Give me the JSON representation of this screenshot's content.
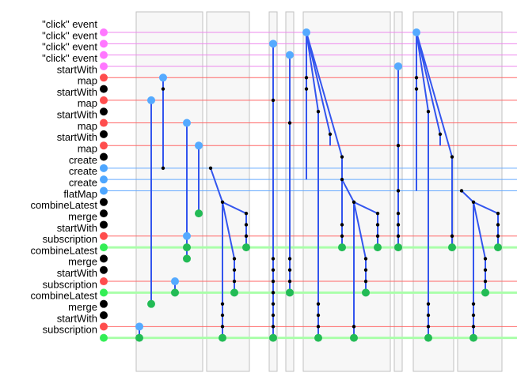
{
  "diagram": {
    "rows": [
      {
        "label": "\"click\" event",
        "kind": "event"
      },
      {
        "label": "\"click\" event",
        "kind": "event"
      },
      {
        "label": "\"click\" event",
        "kind": "event"
      },
      {
        "label": "\"click\" event",
        "kind": "event"
      },
      {
        "label": "startWith",
        "kind": "start"
      },
      {
        "label": "map",
        "kind": "op"
      },
      {
        "label": "startWith",
        "kind": "start"
      },
      {
        "label": "map",
        "kind": "op"
      },
      {
        "label": "startWith",
        "kind": "start"
      },
      {
        "label": "map",
        "kind": "op"
      },
      {
        "label": "startWith",
        "kind": "start"
      },
      {
        "label": "map",
        "kind": "op"
      },
      {
        "label": "create",
        "kind": "create"
      },
      {
        "label": "create",
        "kind": "create"
      },
      {
        "label": "create",
        "kind": "create"
      },
      {
        "label": "flatMap",
        "kind": "op"
      },
      {
        "label": "combineLatest",
        "kind": "op"
      },
      {
        "label": "merge",
        "kind": "op"
      },
      {
        "label": "startWith",
        "kind": "start"
      },
      {
        "label": "subscription",
        "kind": "subscription"
      },
      {
        "label": "combineLatest",
        "kind": "op"
      },
      {
        "label": "merge",
        "kind": "op"
      },
      {
        "label": "startWith",
        "kind": "start"
      },
      {
        "label": "subscription",
        "kind": "subscription"
      },
      {
        "label": "combineLatest",
        "kind": "op"
      },
      {
        "label": "merge",
        "kind": "op"
      },
      {
        "label": "startWith",
        "kind": "start"
      },
      {
        "label": "subscription",
        "kind": "subscription"
      }
    ],
    "colors": {
      "event": "#ff77ff",
      "start": "#ff4d4d",
      "op": "#000000",
      "create": "#4da6ff",
      "subscription": "#33ee55",
      "rail_event": "#ee88ee",
      "rail_start": "#ff6666",
      "rail_create": "#66aaff",
      "rail_subscription": "#aaffaa",
      "dot_blue": "#55aaff",
      "dot_green": "#22bb55",
      "dot_black": "#000000",
      "edge": "#3355ee",
      "band_fill": "#f7f7f7",
      "band_stroke": "#c0c0c0"
    }
  }
}
